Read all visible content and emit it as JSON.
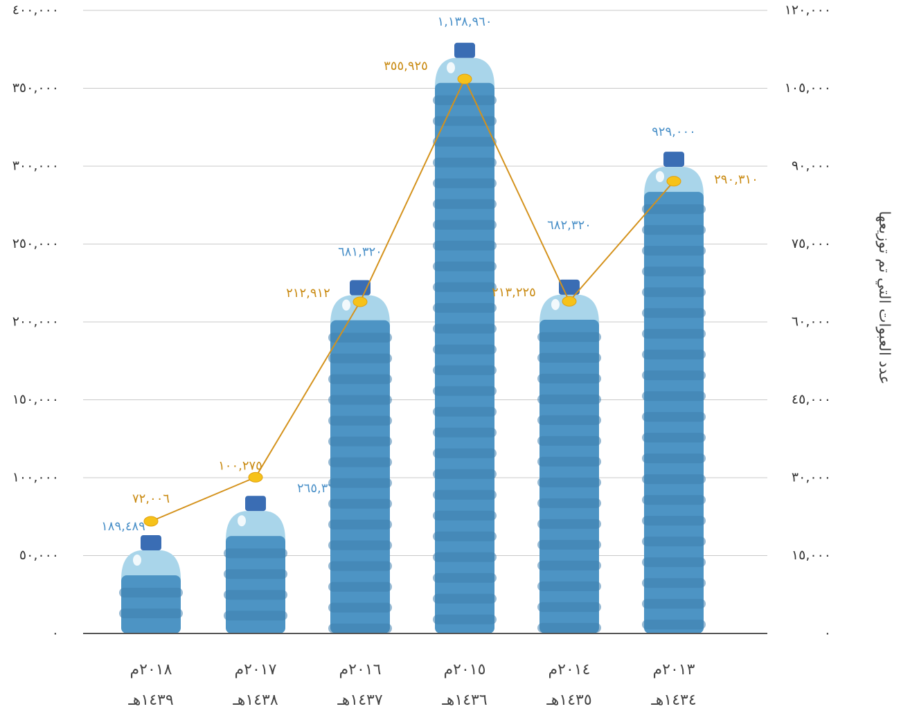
{
  "chart_data": {
    "type": "bottle-line",
    "y2label": "عدد العبوات التي تم توزيعها",
    "categories": [
      [
        "٢٠١٨م",
        "١٤٣٩هـ"
      ],
      [
        "٢٠١٧م",
        "١٤٣٨هـ"
      ],
      [
        "٢٠١٦م",
        "١٤٣٧هـ"
      ],
      [
        "٢٠١٥م",
        "١٤٣٦هـ"
      ],
      [
        "٢٠١٤م",
        "١٤٣٥هـ"
      ],
      [
        "٢٠١٣م",
        "١٤٣٤هـ"
      ]
    ],
    "series": [
      {
        "type": "bottle",
        "color": "#4d94c4",
        "values": [
          189489,
          265360,
          681320,
          1138960,
          682320,
          929000
        ],
        "value_labels": [
          "١٨٩,٤٨٩",
          "٢٦٥,٣٦٠",
          "٦٨١,٣٢٠",
          "١,١٣٨,٩٦٠",
          "٦٨٢,٣٢٠",
          "٩٢٩,٠٠٠"
        ]
      },
      {
        "type": "line",
        "color": "#d4921c",
        "values": [
          72006,
          100275,
          212912,
          355925,
          213225,
          290310
        ],
        "value_labels": [
          "٧٢,٠٠٦",
          "١٠٠,٢٧٥",
          "٢١٢,٩١٢",
          "٣٥٥,٩٢٥",
          "٢١٣,٢٢٥",
          "٢٩٠,٣١٠"
        ]
      }
    ],
    "ylim": [
      0,
      400000
    ],
    "yticks": [
      {
        "value": 0,
        "label": "٠"
      },
      {
        "value": 50000,
        "label": "٥٠,٠٠٠"
      },
      {
        "value": 100000,
        "label": "١٠٠,٠٠٠"
      },
      {
        "value": 150000,
        "label": "١٥٠,٠٠٠"
      },
      {
        "value": 200000,
        "label": "٢٠٠,٠٠٠"
      },
      {
        "value": 250000,
        "label": "٢٥٠,٠٠٠"
      },
      {
        "value": 300000,
        "label": "٣٠٠,٠٠٠"
      },
      {
        "value": 350000,
        "label": "٣٥٠,٠٠٠"
      },
      {
        "value": 400000,
        "label": "٤٠٠,٠٠٠"
      }
    ],
    "y2lim": [
      0,
      120000
    ],
    "y2ticks": [
      {
        "value": 0,
        "label": "٠"
      },
      {
        "value": 15000,
        "label": "١٥,٠٠٠"
      },
      {
        "value": 30000,
        "label": "٣٠,٠٠٠"
      },
      {
        "value": 45000,
        "label": "٤٥,٠٠٠"
      },
      {
        "value": 60000,
        "label": "٦٠,٠٠٠"
      },
      {
        "value": 75000,
        "label": "٧٥,٠٠٠"
      },
      {
        "value": 90000,
        "label": "٩٠,٠٠٠"
      },
      {
        "value": 105000,
        "label": "١٠٥,٠٠٠"
      },
      {
        "value": 120000,
        "label": "١٢٠,٠٠٠"
      }
    ],
    "grid": true
  }
}
